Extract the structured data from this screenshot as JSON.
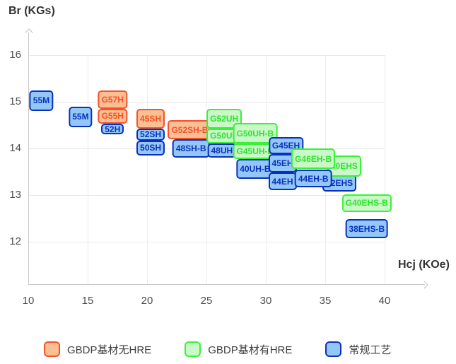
{
  "chart_data": {
    "type": "scatter",
    "title": "",
    "xlabel": "Hcj (KOe)",
    "ylabel": "Br (KGs)",
    "xlim": [
      10,
      43.5
    ],
    "ylim": [
      11.1,
      16.5
    ],
    "grid": true,
    "legend_position": "bottom",
    "x_ticks": [
      10,
      15,
      20,
      25,
      30,
      35,
      40
    ],
    "y_ticks": [
      16,
      15,
      14,
      13,
      12
    ],
    "series": [
      {
        "id": "gbdp-no-hre",
        "label": "GBDP基材无HRE",
        "fill": "#fbbf92",
        "border": "#f4522b",
        "text": "#f4522b"
      },
      {
        "id": "gbdp-hre",
        "label": "GBDP基材有HRE",
        "fill": "#c9f9c7",
        "border": "#3bf03b",
        "text": "#2fe32f"
      },
      {
        "id": "conventional",
        "label": "常规工艺",
        "fill": "#93c7f8",
        "border": "#0b31bb",
        "text": "#0b31bb"
      }
    ],
    "points": [
      {
        "label": "55M",
        "series": "conventional",
        "hcj": 11.1,
        "br_max": 15.25,
        "br_min": 14.8,
        "z": 5
      },
      {
        "label": "55M",
        "series": "conventional",
        "hcj": 14.4,
        "br_max": 14.9,
        "br_min": 14.45,
        "z": 5
      },
      {
        "label": "G57H",
        "series": "gbdp-no-hre",
        "hcj": 17.1,
        "br_max": 15.25,
        "br_min": 14.85,
        "z": 6
      },
      {
        "label": "G55H",
        "series": "gbdp-no-hre",
        "hcj": 17.1,
        "br_max": 14.85,
        "br_min": 14.53,
        "z": 5
      },
      {
        "label": "52H",
        "series": "conventional",
        "hcj": 17.1,
        "br_max": 14.53,
        "br_min": 14.3,
        "z": 4
      },
      {
        "label": "45SH",
        "series": "gbdp-no-hre",
        "hcj": 20.3,
        "br_max": 14.85,
        "br_min": 14.43,
        "z": 6
      },
      {
        "label": "52SH",
        "series": "conventional",
        "hcj": 20.3,
        "br_max": 14.43,
        "br_min": 14.17,
        "z": 5
      },
      {
        "label": "50SH",
        "series": "conventional",
        "hcj": 20.3,
        "br_max": 14.17,
        "br_min": 13.85,
        "z": 4
      },
      {
        "label": "G52SH-B",
        "series": "gbdp-no-hre",
        "hcj": 23.6,
        "br_max": 14.6,
        "br_min": 14.2,
        "z": 5
      },
      {
        "label": "48SH-B",
        "series": "conventional",
        "hcj": 23.7,
        "br_max": 14.2,
        "br_min": 13.8,
        "z": 4
      },
      {
        "label": "G52UH",
        "series": "gbdp-hre",
        "hcj": 26.5,
        "br_max": 14.85,
        "br_min": 14.43,
        "z": 6
      },
      {
        "label": "G50UH",
        "series": "gbdp-hre",
        "hcj": 26.5,
        "br_max": 14.43,
        "br_min": 14.1,
        "z": 5
      },
      {
        "label": "48UH",
        "series": "conventional",
        "hcj": 26.3,
        "br_max": 14.1,
        "br_min": 13.8,
        "z": 4
      },
      {
        "label": "G50UH-B",
        "series": "gbdp-hre",
        "hcj": 29.1,
        "br_max": 14.55,
        "br_min": 14.1,
        "z": 6
      },
      {
        "label": "G45UH-B",
        "series": "gbdp-hre",
        "hcj": 29.1,
        "br_max": 14.1,
        "br_min": 13.78,
        "z": 5
      },
      {
        "label": "40UH-B",
        "series": "conventional",
        "hcj": 29.1,
        "br_max": 13.77,
        "br_min": 13.35,
        "z": 4
      },
      {
        "label": "G45EH",
        "series": "conventional",
        "hcj": 31.7,
        "br_max": 14.25,
        "br_min": 13.88,
        "z": 7
      },
      {
        "label": "45EH",
        "series": "conventional",
        "hcj": 31.4,
        "br_max": 13.88,
        "br_min": 13.49,
        "z": 6
      },
      {
        "label": "44EH",
        "series": "conventional",
        "hcj": 31.4,
        "br_max": 13.49,
        "br_min": 13.1,
        "z": 5
      },
      {
        "label": "G46EH-B",
        "series": "gbdp-hre",
        "hcj": 34.0,
        "br_max": 14.0,
        "br_min": 13.56,
        "z": 8
      },
      {
        "label": "44EH-B",
        "series": "conventional",
        "hcj": 34.0,
        "br_max": 13.55,
        "br_min": 13.16,
        "z": 6
      },
      {
        "label": "40EHS",
        "series": "gbdp-hre",
        "hcj": 36.6,
        "br_max": 13.85,
        "br_min": 13.4,
        "z": 5
      },
      {
        "label": "42EHS",
        "series": "conventional",
        "hcj": 36.2,
        "br_max": 13.45,
        "br_min": 13.08,
        "z": 4
      },
      {
        "label": "G40EHS-B",
        "series": "gbdp-hre",
        "hcj": 38.5,
        "br_max": 13.02,
        "br_min": 12.64,
        "z": 4
      },
      {
        "label": "38EHS-B",
        "series": "conventional",
        "hcj": 38.5,
        "br_max": 12.48,
        "br_min": 12.07,
        "z": 4
      }
    ]
  }
}
